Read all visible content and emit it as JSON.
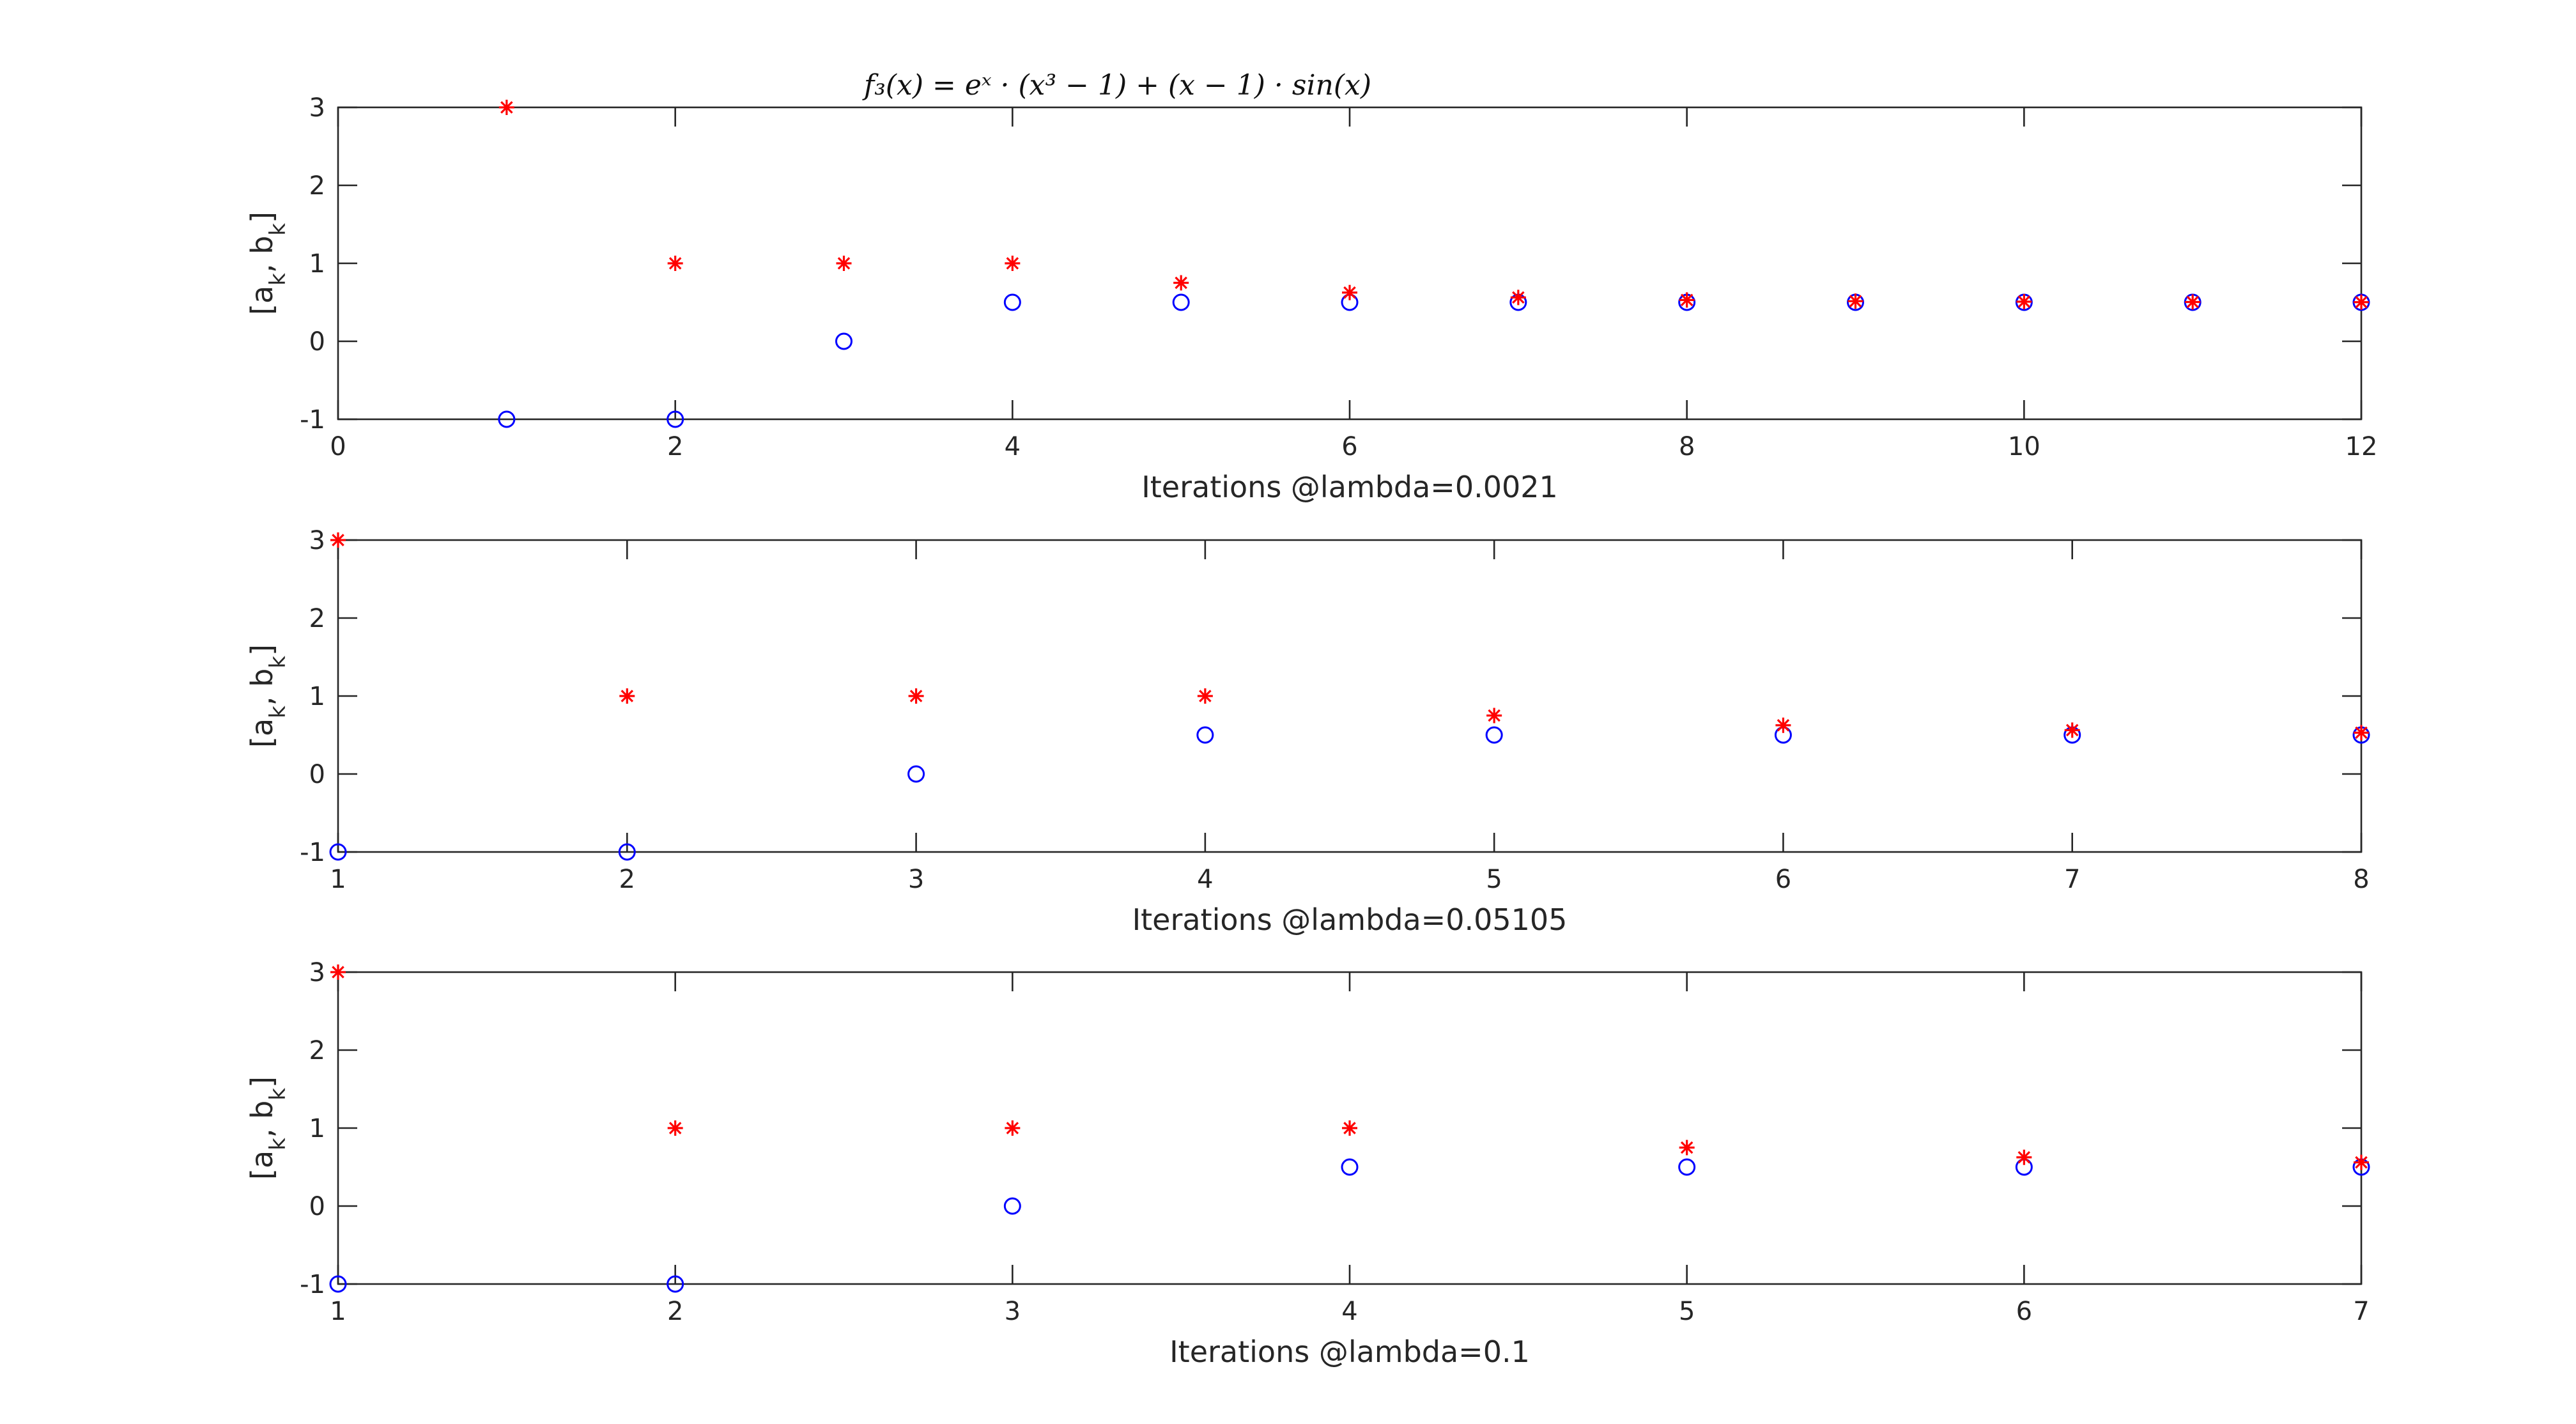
{
  "figure": {
    "title": "f₃(x) = eˣ · (x³ − 1) + (x − 1) · sin(x)"
  },
  "colors": {
    "a_series": "#0000ff",
    "b_series": "#ff0000",
    "axes": "#262626"
  },
  "chart_data": [
    {
      "type": "scatter",
      "xlabel": "Iterations @lambda=0.0021",
      "ylabel": "[a_k, b_k]",
      "xlim": [
        0,
        12
      ],
      "ylim": [
        -1,
        3
      ],
      "xticks": [
        0,
        2,
        4,
        6,
        8,
        10,
        12
      ],
      "yticks": [
        -1,
        0,
        1,
        2,
        3
      ],
      "grid": false,
      "series": [
        {
          "marker": "circle",
          "color": "#0000ff",
          "points": [
            [
              1,
              -1
            ],
            [
              2,
              -1
            ],
            [
              3,
              0
            ],
            [
              4,
              0.5
            ],
            [
              5,
              0.5
            ],
            [
              6,
              0.5
            ],
            [
              7,
              0.5
            ],
            [
              8,
              0.5
            ],
            [
              9,
              0.5
            ],
            [
              10,
              0.5
            ],
            [
              11,
              0.5
            ],
            [
              12,
              0.5
            ]
          ]
        },
        {
          "marker": "star",
          "color": "#ff0000",
          "points": [
            [
              1,
              3
            ],
            [
              2,
              1
            ],
            [
              3,
              1
            ],
            [
              4,
              1
            ],
            [
              5,
              0.75
            ],
            [
              6,
              0.625
            ],
            [
              7,
              0.5625
            ],
            [
              8,
              0.53
            ],
            [
              9,
              0.515
            ],
            [
              10,
              0.508
            ],
            [
              11,
              0.504
            ],
            [
              12,
              0.502
            ]
          ]
        }
      ]
    },
    {
      "type": "scatter",
      "xlabel": "Iterations @lambda=0.05105",
      "ylabel": "[a_k, b_k]",
      "xlim": [
        1,
        8
      ],
      "ylim": [
        -1,
        3
      ],
      "xticks": [
        1,
        2,
        3,
        4,
        5,
        6,
        7,
        8
      ],
      "yticks": [
        -1,
        0,
        1,
        2,
        3
      ],
      "grid": false,
      "series": [
        {
          "marker": "circle",
          "color": "#0000ff",
          "points": [
            [
              1,
              -1
            ],
            [
              2,
              -1
            ],
            [
              3,
              0
            ],
            [
              4,
              0.5
            ],
            [
              5,
              0.5
            ],
            [
              6,
              0.5
            ],
            [
              7,
              0.5
            ],
            [
              8,
              0.5
            ]
          ]
        },
        {
          "marker": "star",
          "color": "#ff0000",
          "points": [
            [
              1,
              3
            ],
            [
              2,
              1
            ],
            [
              3,
              1
            ],
            [
              4,
              1
            ],
            [
              5,
              0.75
            ],
            [
              6,
              0.625
            ],
            [
              7,
              0.5625
            ],
            [
              8,
              0.53
            ]
          ]
        }
      ]
    },
    {
      "type": "scatter",
      "xlabel": "Iterations @lambda=0.1",
      "ylabel": "[a_k, b_k]",
      "xlim": [
        1,
        7
      ],
      "ylim": [
        -1,
        3
      ],
      "xticks": [
        1,
        2,
        3,
        4,
        5,
        6,
        7
      ],
      "yticks": [
        -1,
        0,
        1,
        2,
        3
      ],
      "grid": false,
      "series": [
        {
          "marker": "circle",
          "color": "#0000ff",
          "points": [
            [
              1,
              -1
            ],
            [
              2,
              -1
            ],
            [
              3,
              0
            ],
            [
              4,
              0.5
            ],
            [
              5,
              0.5
            ],
            [
              6,
              0.5
            ],
            [
              7,
              0.5
            ]
          ]
        },
        {
          "marker": "star",
          "color": "#ff0000",
          "points": [
            [
              1,
              3
            ],
            [
              2,
              1
            ],
            [
              3,
              1
            ],
            [
              4,
              1
            ],
            [
              5,
              0.75
            ],
            [
              6,
              0.625
            ],
            [
              7,
              0.56
            ]
          ]
        }
      ]
    }
  ]
}
